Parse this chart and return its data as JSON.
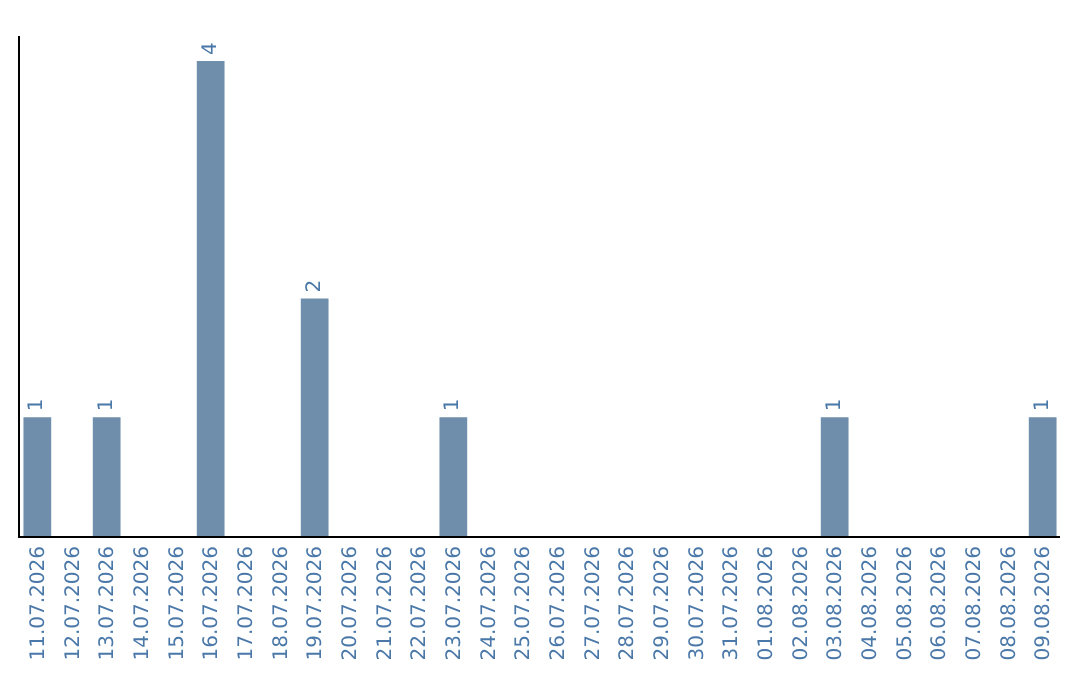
{
  "chart_data": {
    "type": "bar",
    "categories": [
      "11.07.2026",
      "12.07.2026",
      "13.07.2026",
      "14.07.2026",
      "15.07.2026",
      "16.07.2026",
      "17.07.2026",
      "18.07.2026",
      "19.07.2026",
      "20.07.2026",
      "21.07.2026",
      "22.07.2026",
      "23.07.2026",
      "24.07.2026",
      "25.07.2026",
      "26.07.2026",
      "27.07.2026",
      "28.07.2026",
      "29.07.2026",
      "30.07.2026",
      "31.07.2026",
      "01.08.2026",
      "02.08.2026",
      "03.08.2026",
      "04.08.2026",
      "05.08.2026",
      "06.08.2026",
      "07.08.2026",
      "08.08.2026",
      "09.08.2026"
    ],
    "values": [
      1,
      0,
      1,
      0,
      0,
      4,
      0,
      0,
      2,
      0,
      0,
      0,
      1,
      0,
      0,
      0,
      0,
      0,
      0,
      0,
      0,
      0,
      0,
      1,
      0,
      0,
      0,
      0,
      0,
      1
    ],
    "value_labels": [
      "1",
      null,
      "1",
      null,
      null,
      "4",
      null,
      null,
      "2",
      null,
      null,
      null,
      "1",
      null,
      null,
      null,
      null,
      null,
      null,
      null,
      null,
      null,
      null,
      "1",
      null,
      null,
      null,
      null,
      null,
      "1"
    ],
    "color": "#6e8eab",
    "tick_labels": "x",
    "legend": false
  }
}
